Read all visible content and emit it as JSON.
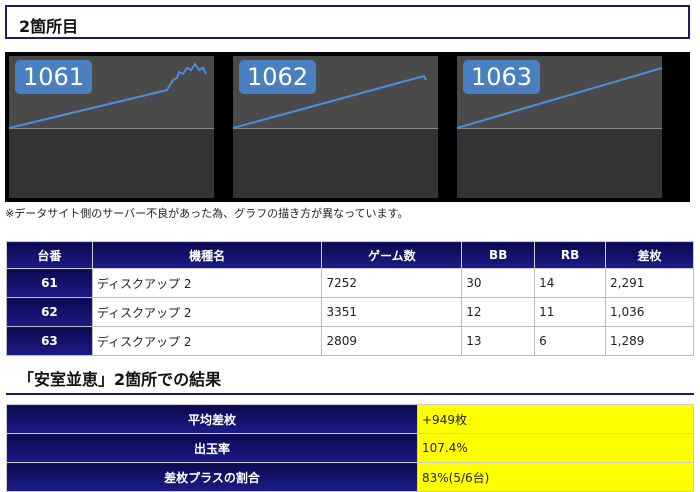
{
  "header": {
    "title": "2箇所目"
  },
  "graphs": [
    {
      "label": "1061"
    },
    {
      "label": "1062"
    },
    {
      "label": "1063"
    }
  ],
  "note": "※データサイト側のサーバー不良があった為、グラフの描き方が異なっています。",
  "machine_table": {
    "headers": [
      "台番",
      "機種名",
      "ゲーム数",
      "BB",
      "RB",
      "差枚"
    ],
    "rows": [
      [
        "61",
        "ディスクアップ 2",
        "7252",
        "30",
        "14",
        "2,291"
      ],
      [
        "62",
        "ディスクアップ 2",
        "3351",
        "12",
        "11",
        "1,036"
      ],
      [
        "63",
        "ディスクアップ 2",
        "2809",
        "13",
        "6",
        "1,289"
      ]
    ]
  },
  "result": {
    "title": "「安室並恵」2箇所での結果",
    "rows": [
      {
        "label": "平均差枚",
        "value": "+949枚"
      },
      {
        "label": "出玉率",
        "value": "107.4%"
      },
      {
        "label": "差枚プラスの割合",
        "value": "83%(5/6台)"
      }
    ]
  },
  "colors": {
    "header_navy": "#1a1a6e",
    "highlight_yellow": "#ffff00",
    "graph_line": "#4a90d9",
    "label_blue": "#4a7fc0"
  }
}
